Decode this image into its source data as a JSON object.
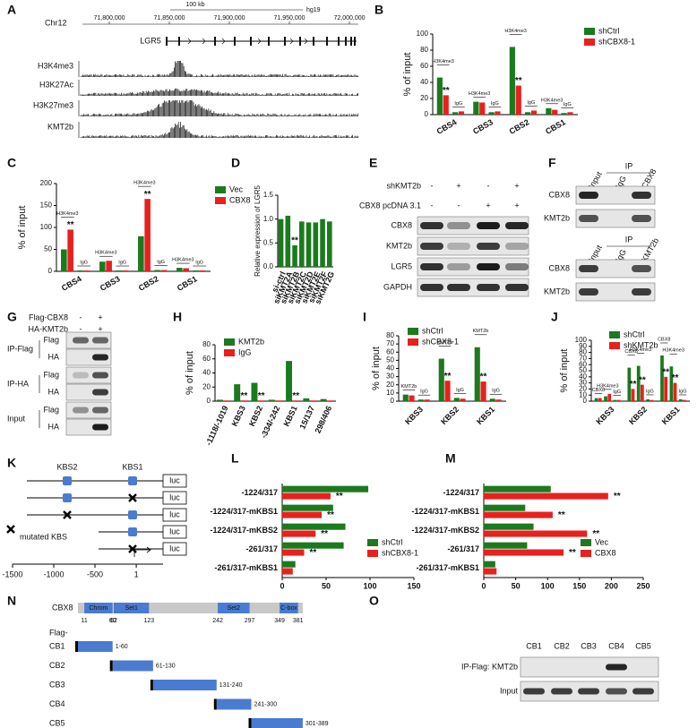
{
  "genome_browser": {
    "panel": "A",
    "scale": "100 kb",
    "assembly": "hg19",
    "chromosome": "Chr12",
    "coordinates": [
      "71,800,000",
      "71,850,000",
      "71,900,000",
      "71,950,000",
      "72,000,000"
    ],
    "gene": "LGR5",
    "tracks": [
      "H3K4me3",
      "H3K27Ac",
      "H3K27me3",
      "KMT2b"
    ]
  },
  "chart_data": [
    {
      "type": "bar",
      "panel": "B",
      "y_label": "% of input",
      "groups": [
        "CBS4",
        "CBS3",
        "CBS2",
        "CBS1"
      ],
      "categories": [
        "H3K4me3",
        "IgG",
        "H3K4me3",
        "IgG",
        "H3K4me3",
        "IgG",
        "H3K4me3",
        "IgG"
      ],
      "series": [
        {
          "name": "shCtrl",
          "color": "#1b7a1e",
          "values": [
            46,
            3,
            16,
            3,
            84,
            3,
            8,
            2
          ]
        },
        {
          "name": "shCBX8-1",
          "color": "#e8201e",
          "values": [
            24,
            4,
            15,
            4,
            36,
            5,
            6,
            3
          ],
          "significance": [
            "**",
            null,
            null,
            null,
            "**",
            null,
            null,
            null
          ]
        }
      ],
      "ylim": [
        0,
        100
      ],
      "yticks": [
        0,
        20,
        40,
        60,
        80,
        100
      ],
      "legend": "upper right"
    },
    {
      "type": "bar",
      "panel": "C",
      "y_label": "% of input",
      "groups": [
        "CBS4",
        "CBS3",
        "CBS2",
        "CBS1"
      ],
      "categories": [
        "H3K4me3",
        "IgG",
        "H3K4me3",
        "IgG",
        "H3K4me3",
        "IgG",
        "H3K4me3",
        "IgG"
      ],
      "series": [
        {
          "name": "Vec",
          "color": "#1b7a1e",
          "values": [
            50,
            2,
            22,
            2,
            80,
            3,
            8,
            2
          ]
        },
        {
          "name": "CBX8",
          "color": "#e8201e",
          "values": [
            95,
            2,
            24,
            2,
            165,
            3,
            7,
            2
          ],
          "significance": [
            "**",
            null,
            null,
            null,
            "**",
            null,
            null,
            null
          ]
        }
      ],
      "ylim": [
        0,
        200
      ],
      "yticks": [
        0,
        50,
        100,
        150,
        200
      ],
      "legend": "upper right"
    },
    {
      "type": "bar",
      "panel": "D",
      "y_label": "Relative expression of LGR5",
      "categories": [
        "si-ctrl",
        "siKMT2A",
        "siKMT2B",
        "siKMT2C",
        "siKMT2D",
        "siKMT2E",
        "siKMT2F",
        "siKMT2G"
      ],
      "values": [
        1.0,
        1.07,
        0.45,
        0.95,
        0.93,
        0.93,
        1.0,
        0.95
      ],
      "color": "#1b7a1e",
      "significance": [
        null,
        null,
        "**",
        null,
        null,
        null,
        null,
        null
      ],
      "ylim": [
        0,
        1.5
      ],
      "yticks": [
        {
          "value": 0,
          "label": "0.0"
        },
        0.5,
        {
          "value": 1,
          "label": "1.0"
        },
        1.5
      ]
    },
    {
      "type": "bar",
      "panel": "H",
      "y_label": "% of input",
      "categories": [
        "-1118/-1019",
        "KBS3",
        "KBS2",
        "-334/-242",
        "KBS1",
        "15/137",
        "298/406"
      ],
      "series": [
        {
          "name": "KMT2b",
          "color": "#1b7a1e",
          "values": [
            2,
            24,
            26,
            2,
            57,
            4,
            3
          ]
        },
        {
          "name": "IgG",
          "color": "#e8201e",
          "values": [
            1,
            1,
            1,
            1,
            1,
            1,
            1
          ],
          "significance": [
            null,
            "**",
            "**",
            null,
            "**",
            null,
            null
          ]
        }
      ],
      "ylim": [
        0,
        80
      ],
      "yticks": [
        0,
        20,
        40,
        60,
        80
      ],
      "legend": "upper left"
    },
    {
      "type": "bar",
      "panel": "I",
      "y_label": "% of input",
      "groups": [
        "KBS3",
        "KBS2",
        "KBS1"
      ],
      "categories": [
        "KMT2b",
        "IgG",
        "KMT2b",
        "IgG",
        "KMT2b",
        "IgG"
      ],
      "series": [
        {
          "name": "shCtrl",
          "color": "#1b7a1e",
          "values": [
            8,
            2,
            52,
            4,
            66,
            3
          ]
        },
        {
          "name": "shCBX8-1",
          "color": "#e8201e",
          "values": [
            7,
            2,
            25,
            3,
            24,
            2
          ],
          "significance": [
            null,
            null,
            "**",
            null,
            "**",
            null
          ]
        }
      ],
      "ylim": [
        0,
        80
      ],
      "yticks": [
        0,
        10,
        20,
        30,
        40,
        50,
        60,
        70,
        80
      ],
      "legend": "upper left"
    },
    {
      "type": "bar",
      "panel": "J",
      "y_label": "% of input",
      "groups": [
        "KBS3",
        "KBS2",
        "KBS1"
      ],
      "categories": [
        "CBX8",
        "H3K4me3",
        "IgG",
        "CBX8",
        "H3K4me3",
        "IgG",
        "CBX8",
        "H3K4me3",
        "IgG"
      ],
      "series": [
        {
          "name": "shCtrl",
          "color": "#1b7a1e",
          "values": [
            5,
            8,
            2,
            55,
            58,
            3,
            75,
            57,
            3
          ]
        },
        {
          "name": "shKMT2b",
          "color": "#e8201e",
          "values": [
            5,
            12,
            2,
            20,
            27,
            2,
            40,
            30,
            2
          ],
          "significance": [
            null,
            null,
            null,
            "**",
            "**",
            null,
            "**",
            "**",
            null
          ]
        }
      ],
      "ylim": [
        0,
        100
      ],
      "yticks": [
        0,
        10,
        20,
        30,
        40,
        50,
        60,
        70,
        80,
        90,
        100
      ],
      "legend": "upper left"
    },
    {
      "type": "barh",
      "panel": "L",
      "categories": [
        "-1224/317",
        "-1224/317-mKBS1",
        "-1224/317-mKBS2",
        "-261/317",
        "-261/317-mKBS1"
      ],
      "series": [
        {
          "name": "shCtrl",
          "color": "#1b7a1e",
          "values": [
            98,
            58,
            72,
            70,
            15
          ]
        },
        {
          "name": "shCBX8-1",
          "color": "#e8201e",
          "values": [
            55,
            45,
            38,
            25,
            12
          ],
          "significance": [
            "**",
            "**",
            "**",
            "**",
            null
          ]
        }
      ],
      "xlim": [
        0,
        150
      ],
      "xticks": [
        0,
        50,
        100,
        150
      ],
      "legend": "lower right"
    },
    {
      "type": "barh",
      "panel": "M",
      "categories": [
        "-1224/317",
        "-1224/317-mKBS1",
        "-1224/317-mKBS2",
        "-261/317",
        "-261/317-mKBS1"
      ],
      "series": [
        {
          "name": "Vec",
          "color": "#1b7a1e",
          "values": [
            105,
            65,
            78,
            68,
            18
          ]
        },
        {
          "name": "CBX8",
          "color": "#e8201e",
          "values": [
            195,
            108,
            162,
            125,
            20
          ],
          "significance": [
            "**",
            "**",
            "**",
            "**",
            null
          ]
        }
      ],
      "xlim": [
        0,
        250
      ],
      "xticks": [
        0,
        50,
        100,
        150,
        200,
        250
      ],
      "legend": "lower right"
    }
  ],
  "blot_e": {
    "panel": "E",
    "conditions": [
      {
        "label": "shKMT2b",
        "signs": [
          "-",
          "+",
          "-",
          "+"
        ]
      },
      {
        "label": "CBX8 pcDNA 3.1",
        "signs": [
          "-",
          "-",
          "+",
          "+"
        ]
      }
    ],
    "rows": [
      "CBX8",
      "KMT2b",
      "LGR5",
      "GAPDH"
    ]
  },
  "blot_f": {
    "panel": "F",
    "blocks": [
      {
        "ip": "IP",
        "lanes": [
          "Input",
          "IgG",
          "CBX8"
        ],
        "rows": [
          "CBX8",
          "KMT2b"
        ]
      },
      {
        "ip": "IP",
        "lanes": [
          "Input",
          "IgG",
          "KMT2b"
        ],
        "rows": [
          "CBX8",
          "KMT2b"
        ]
      }
    ]
  },
  "blot_g": {
    "panel": "G",
    "conditions": [
      {
        "label": "Flag-CBX8",
        "signs": [
          "-",
          "+"
        ]
      },
      {
        "label": "HA-KMT2b",
        "signs": [
          "-",
          "+"
        ]
      }
    ],
    "blocks": [
      {
        "label": "IP-Flag",
        "rows": [
          "Flag",
          "HA"
        ]
      },
      {
        "label": "IP-HA",
        "rows": [
          "Flag",
          "HA"
        ]
      },
      {
        "label": "Input",
        "rows": [
          "Flag",
          "HA"
        ]
      }
    ]
  },
  "promoter_diagram": {
    "panel": "K",
    "sites": [
      "KBS2",
      "KBS1"
    ],
    "reporter": "luc",
    "legend": "mutated KBS",
    "axis": [
      -1500,
      -1000,
      -500,
      1
    ]
  },
  "domain_map": {
    "panel": "N",
    "protein": "CBX8",
    "domains": [
      {
        "name": "Chrom",
        "start": 11,
        "end": 60
      },
      {
        "name": "Set1",
        "start": 62,
        "end": 123
      },
      {
        "name": "Set2",
        "start": 242,
        "end": 297
      },
      {
        "name": "C-box",
        "start": 349,
        "end": 381
      }
    ],
    "construct_prefix": "Flag-",
    "constructs": [
      {
        "name": "CB1",
        "range": "1-60"
      },
      {
        "name": "CB2",
        "range": "61-130"
      },
      {
        "name": "CB3",
        "range": "131-240"
      },
      {
        "name": "CB4",
        "range": "241-300"
      },
      {
        "name": "CB5",
        "range": "301-389"
      }
    ]
  },
  "blot_o": {
    "panel": "O",
    "lanes": [
      "CB1",
      "CB2",
      "CB3",
      "CB4",
      "CB5"
    ],
    "rows": [
      "IP-Flag: KMT2b",
      "Input"
    ]
  }
}
